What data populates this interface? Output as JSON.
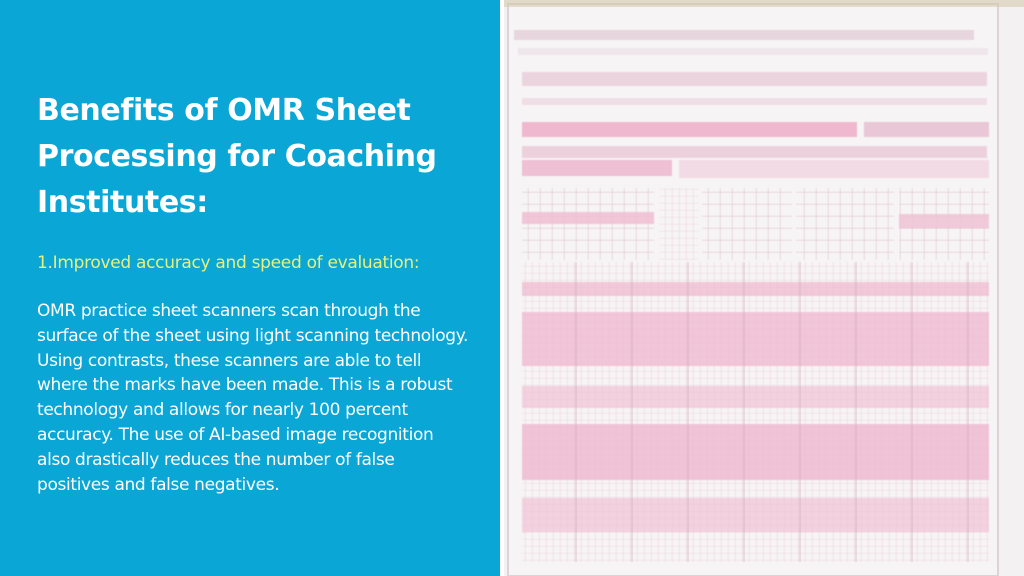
{
  "slide": {
    "title": "Benefits of OMR Sheet Processing for Coaching Institutes:",
    "subheading": "1.Improved accuracy and speed of evaluation:",
    "body": "OMR practice sheet scanners scan through the surface of the sheet using light scanning technology. Using contrasts, these scanners are able to tell where the marks have been made. This is a robust technology and allows for nearly 100 percent accuracy. The use of AI-based image recognition also drastically reduces the number of false positives and false negatives."
  },
  "image": {
    "name": "omr-sheet-image"
  },
  "colors": {
    "panel_bg": "#0aa6d6",
    "title": "#ffffff",
    "subheading": "#e8f17a",
    "body": "#ffffff",
    "sheet_pink": "#efb8cf",
    "sheet_paper": "#f7f4f5"
  }
}
